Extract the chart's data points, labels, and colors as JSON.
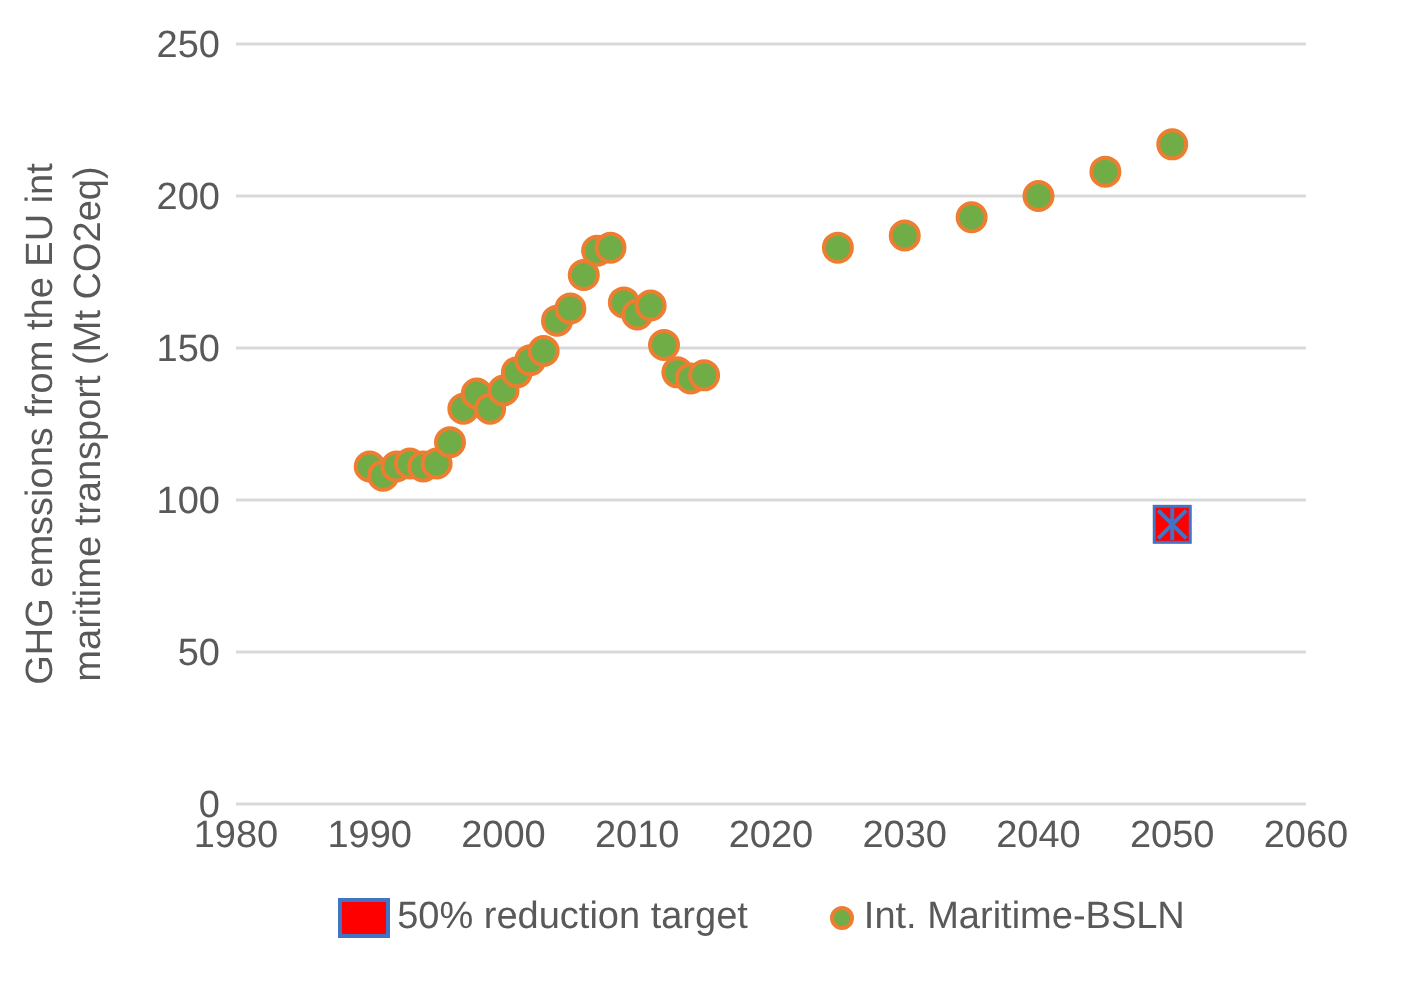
{
  "chart_data": {
    "type": "scatter",
    "ylabel": "GHG emssions from the EU int maritime transport (Mt CO2eq)",
    "xlim": [
      1980,
      2060
    ],
    "xticks": [
      1980,
      1990,
      2000,
      2010,
      2020,
      2030,
      2040,
      2050,
      2060
    ],
    "ylim": [
      0,
      250
    ],
    "yticks": [
      0,
      50,
      100,
      150,
      200,
      250
    ],
    "grid": "y",
    "legend": "bottom",
    "series": [
      {
        "name": "50% reduction target",
        "color": "#ff0000",
        "marker": "square",
        "x": [
          2050
        ],
        "values": [
          92
        ]
      },
      {
        "name": "Int. Maritime-BSLN",
        "color": "#70ad47",
        "marker": "circle",
        "x": [
          1990,
          1991,
          1992,
          1993,
          1994,
          1995,
          1996,
          1997,
          1998,
          1999,
          2000,
          2001,
          2002,
          2003,
          2004,
          2005,
          2006,
          2007,
          2008,
          2009,
          2010,
          2011,
          2012,
          2013,
          2014,
          2015,
          2025,
          2030,
          2035,
          2040,
          2045,
          2050
        ],
        "values": [
          111,
          108,
          111,
          112,
          111,
          112,
          119,
          130,
          135,
          130,
          136,
          142,
          146,
          149,
          159,
          163,
          174,
          182,
          183,
          165,
          161,
          164,
          151,
          142,
          140,
          141,
          183,
          187,
          193,
          200,
          208,
          217
        ]
      }
    ]
  }
}
